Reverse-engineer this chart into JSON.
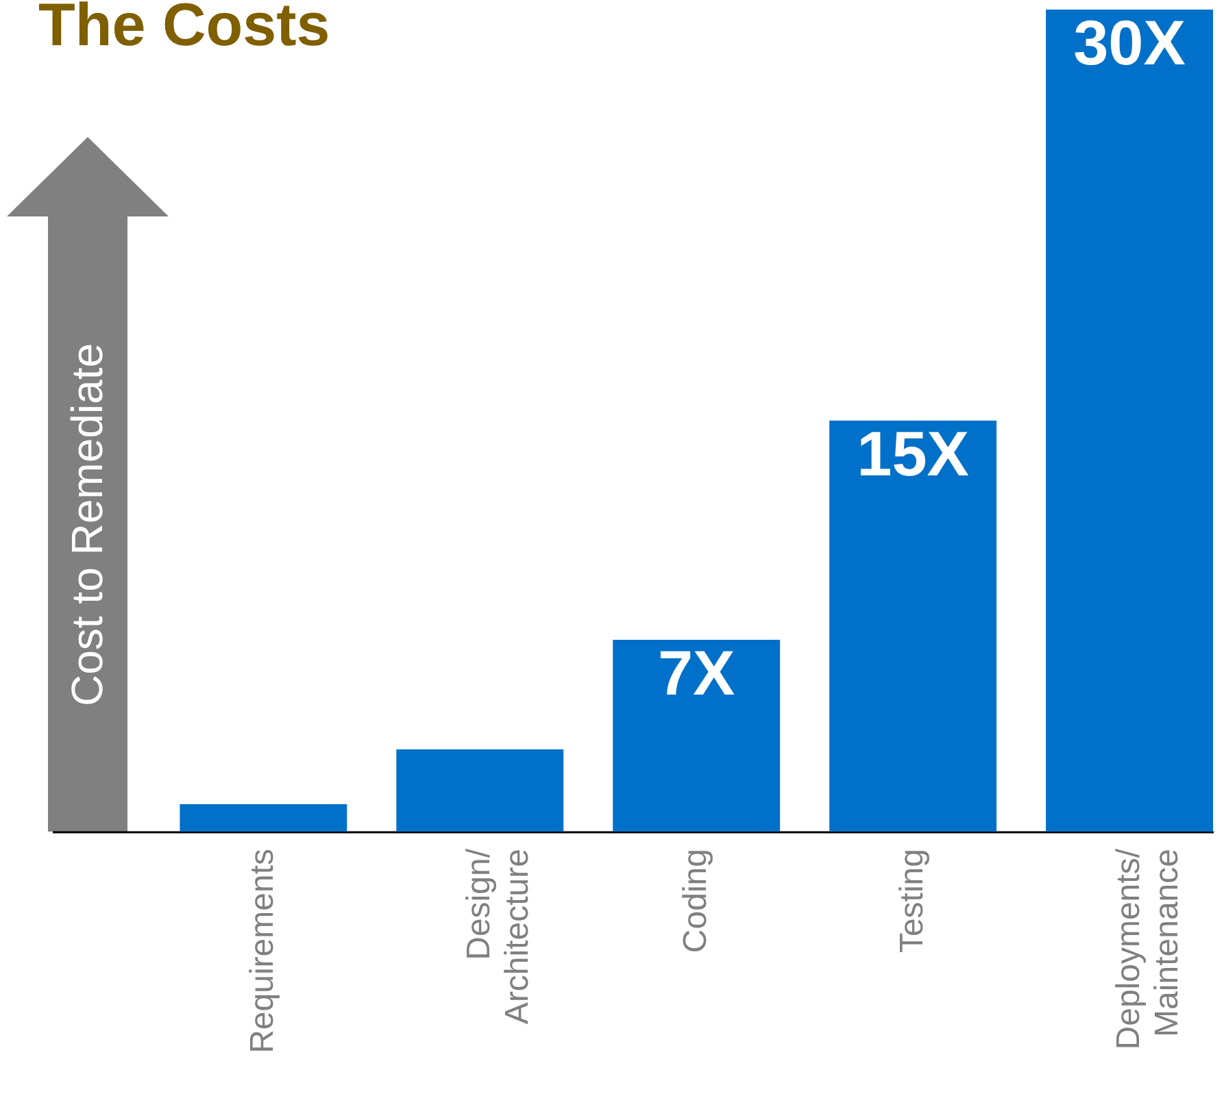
{
  "chart_data": {
    "type": "bar",
    "title": "The Costs",
    "ylabel": "Cost to Remediate",
    "categories": [
      "Requirements",
      "Design/\nArchitecture",
      "Coding",
      "Testing",
      "Deployments/\nMaintenance"
    ],
    "values": [
      1,
      3,
      7,
      15,
      30
    ],
    "value_labels": [
      null,
      null,
      "7X",
      "15X",
      "30X"
    ],
    "color": "#0070c8"
  }
}
